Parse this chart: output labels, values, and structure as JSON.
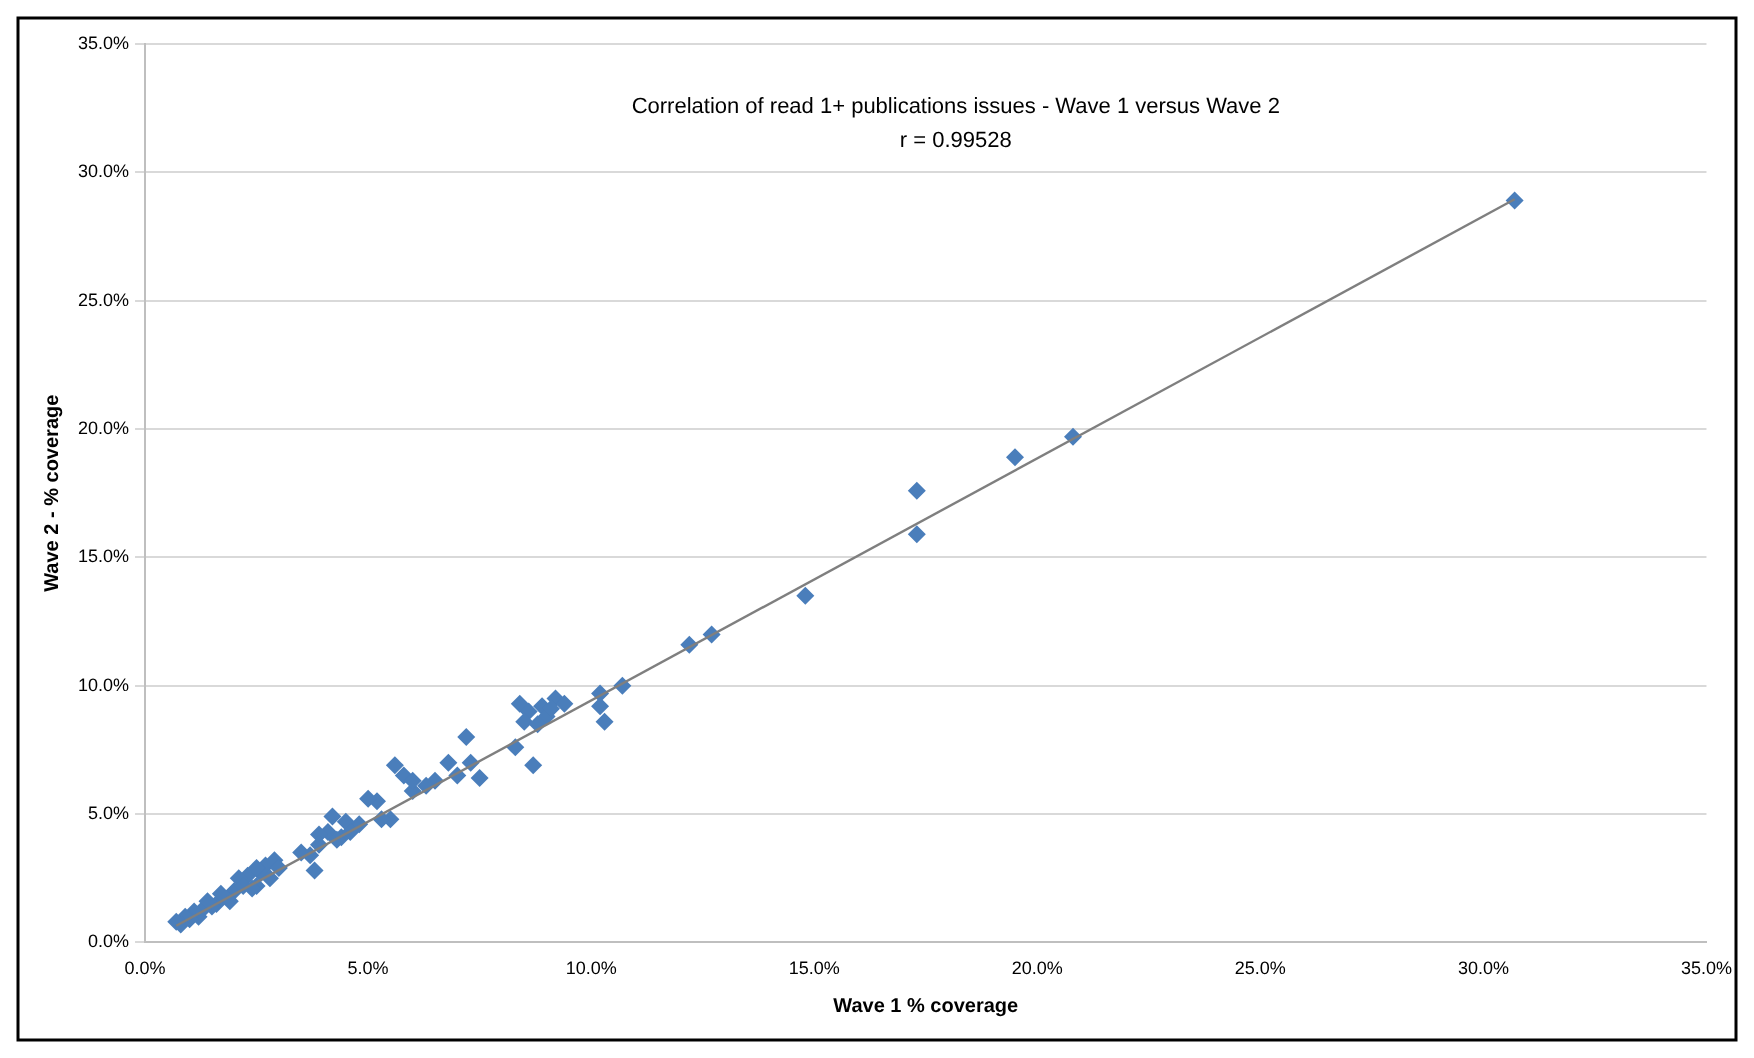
{
  "chart_data": {
    "type": "scatter",
    "title": "Correlation of read 1+ publications issues - Wave 1 versus Wave 2",
    "subtitle": "r = 0.99528",
    "xlabel": "Wave 1 % coverage",
    "ylabel": "Wave 2 - % coverage",
    "xlim": [
      0,
      35
    ],
    "ylim": [
      0,
      35
    ],
    "xticks": [
      {
        "value": 0,
        "label": "0.0%"
      },
      {
        "value": 5,
        "label": "5.0%"
      },
      {
        "value": 10,
        "label": "10.0%"
      },
      {
        "value": 15,
        "label": "15.0%"
      },
      {
        "value": 20,
        "label": "20.0%"
      },
      {
        "value": 25,
        "label": "25.0%"
      },
      {
        "value": 30,
        "label": "30.0%"
      },
      {
        "value": 35,
        "label": "35.0%"
      }
    ],
    "yticks": [
      {
        "value": 0,
        "label": "0.0%"
      },
      {
        "value": 5,
        "label": "5.0%"
      },
      {
        "value": 10,
        "label": "10.0%"
      },
      {
        "value": 15,
        "label": "15.0%"
      },
      {
        "value": 20,
        "label": "20.0%"
      },
      {
        "value": 25,
        "label": "25.0%"
      },
      {
        "value": 30,
        "label": "30.0%"
      },
      {
        "value": 35,
        "label": "35.0%"
      }
    ],
    "grid": "y",
    "legend": false,
    "marker": "diamond",
    "series": [
      {
        "color": "#4a7ebb",
        "x": [
          30.7,
          20.8,
          19.5,
          17.3,
          17.3,
          14.8,
          12.7,
          12.2,
          10.7,
          10.2,
          10.3,
          10.2,
          8.4,
          8.6,
          8.9,
          9.2,
          9.0,
          8.5,
          8.7,
          8.3,
          8.8,
          9.4,
          9.1,
          7.2,
          7.0,
          7.3,
          7.5,
          6.8,
          6.5,
          6.0,
          6.3,
          5.6,
          5.8,
          6.0,
          5.5,
          5.2,
          5.0,
          4.8,
          5.3,
          4.5,
          4.2,
          4.1,
          3.9,
          3.8,
          3.7,
          4.4,
          4.6,
          3.5,
          3.9,
          4.3,
          2.9,
          2.7,
          2.6,
          2.5,
          2.3,
          2.1,
          2.0,
          2.2,
          1.9,
          1.6,
          1.5,
          1.3,
          1.2,
          1.1,
          1.0,
          0.9,
          0.8,
          0.7,
          2.8,
          2.4,
          1.7,
          1.4,
          3.0,
          2.5
        ],
        "values": [
          28.9,
          19.7,
          18.9,
          17.6,
          15.9,
          13.5,
          12.0,
          11.6,
          10.0,
          9.7,
          8.6,
          9.2,
          9.3,
          9.0,
          9.2,
          9.5,
          8.8,
          8.6,
          6.9,
          7.6,
          8.5,
          9.3,
          9.1,
          8.0,
          6.5,
          7.0,
          6.4,
          7.0,
          6.3,
          5.9,
          6.1,
          6.9,
          6.5,
          6.3,
          4.8,
          5.5,
          5.6,
          4.6,
          4.8,
          4.7,
          4.9,
          4.3,
          4.2,
          2.8,
          3.4,
          4.1,
          4.3,
          3.5,
          3.8,
          4.0,
          3.2,
          3.0,
          2.7,
          2.2,
          2.6,
          2.5,
          2.0,
          2.2,
          1.6,
          1.5,
          1.4,
          1.3,
          1.0,
          1.2,
          0.9,
          1.0,
          0.7,
          0.8,
          2.5,
          2.1,
          1.9,
          1.6,
          2.9,
          2.9
        ]
      },
      {
        "type": "line",
        "color": "#7f7f7f",
        "marker": "none",
        "x": [
          0.7,
          30.7
        ],
        "values": [
          0.65,
          28.95
        ]
      }
    ]
  }
}
